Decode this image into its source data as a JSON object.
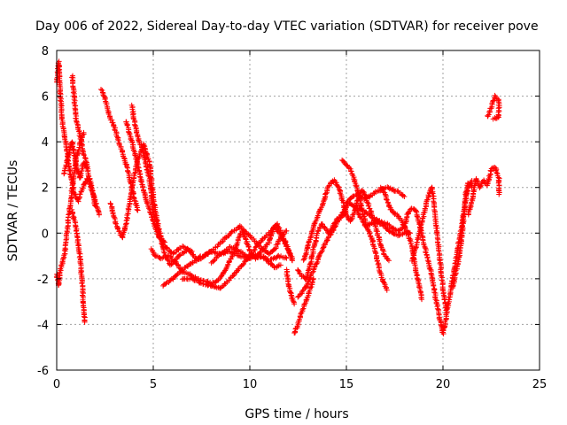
{
  "chart_data": {
    "type": "scatter",
    "title": "Day 006 of 2022, Sidereal Day-to-day VTEC variation (SDTVAR) for receiver pove",
    "xlabel": "GPS time / hours",
    "ylabel": "SDTVAR / TECUs",
    "xlim": [
      0,
      25
    ],
    "ylim": [
      -6,
      8
    ],
    "xticks": [
      0,
      5,
      10,
      15,
      20,
      25
    ],
    "yticks": [
      -6,
      -4,
      -2,
      0,
      2,
      4,
      6,
      8
    ],
    "grid": true,
    "marker": "+",
    "series_color": "#ff0000",
    "tracks": [
      [
        [
          0.0,
          6.6
        ],
        [
          0.1,
          7.5
        ],
        [
          0.2,
          6.0
        ],
        [
          0.3,
          4.8
        ],
        [
          0.5,
          3.8
        ],
        [
          0.7,
          2.6
        ],
        [
          0.9,
          1.8
        ],
        [
          1.1,
          1.4
        ],
        [
          1.3,
          1.9
        ],
        [
          1.6,
          2.4
        ],
        [
          1.9,
          1.7
        ],
        [
          2.2,
          0.8
        ]
      ],
      [
        [
          0.0,
          -1.8
        ],
        [
          0.1,
          -2.3
        ],
        [
          0.2,
          -1.6
        ],
        [
          0.4,
          -1.0
        ],
        [
          0.6,
          0.6
        ],
        [
          0.8,
          1.9
        ],
        [
          1.0,
          3.2
        ],
        [
          1.2,
          3.9
        ],
        [
          1.4,
          4.4
        ]
      ],
      [
        [
          0.8,
          1.0
        ],
        [
          1.0,
          0.2
        ],
        [
          1.2,
          -1.0
        ],
        [
          1.35,
          -2.6
        ],
        [
          1.45,
          -3.9
        ]
      ],
      [
        [
          0.4,
          2.6
        ],
        [
          0.6,
          3.4
        ],
        [
          0.8,
          4.0
        ],
        [
          1.0,
          3.0
        ],
        [
          1.2,
          2.4
        ],
        [
          1.4,
          3.1
        ],
        [
          1.6,
          2.8
        ],
        [
          1.8,
          2.0
        ],
        [
          2.0,
          1.2
        ]
      ],
      [
        [
          0.8,
          6.9
        ],
        [
          0.9,
          6.1
        ],
        [
          1.0,
          5.0
        ],
        [
          1.2,
          4.3
        ],
        [
          1.4,
          3.5
        ],
        [
          1.6,
          2.9
        ]
      ],
      [
        [
          2.3,
          6.3
        ],
        [
          2.5,
          5.9
        ],
        [
          2.7,
          5.2
        ],
        [
          3.0,
          4.6
        ],
        [
          3.3,
          3.8
        ],
        [
          3.6,
          3.0
        ],
        [
          3.8,
          2.3
        ],
        [
          4.0,
          1.6
        ],
        [
          4.2,
          1.0
        ]
      ],
      [
        [
          2.8,
          1.3
        ],
        [
          3.0,
          0.6
        ],
        [
          3.2,
          0.1
        ],
        [
          3.4,
          -0.2
        ],
        [
          3.6,
          0.4
        ],
        [
          3.8,
          1.5
        ],
        [
          4.0,
          2.5
        ],
        [
          4.2,
          3.2
        ],
        [
          4.5,
          3.9
        ],
        [
          4.8,
          3.1
        ],
        [
          5.0,
          1.6
        ],
        [
          5.2,
          0.5
        ],
        [
          5.5,
          -0.5
        ],
        [
          6.0,
          -0.9
        ],
        [
          6.5,
          -0.6
        ],
        [
          7.0,
          -0.8
        ]
      ],
      [
        [
          3.6,
          4.9
        ],
        [
          3.8,
          4.3
        ],
        [
          4.0,
          3.6
        ],
        [
          4.2,
          3.0
        ],
        [
          4.4,
          2.2
        ],
        [
          4.7,
          1.3
        ],
        [
          5.0,
          0.5
        ],
        [
          5.3,
          -0.2
        ],
        [
          5.6,
          -0.4
        ]
      ],
      [
        [
          3.9,
          5.6
        ],
        [
          4.0,
          5.0
        ],
        [
          4.2,
          4.2
        ],
        [
          4.5,
          3.5
        ],
        [
          4.8,
          2.4
        ],
        [
          5.0,
          0.9
        ],
        [
          5.3,
          0.0
        ],
        [
          5.6,
          -0.9
        ],
        [
          5.9,
          -1.4
        ],
        [
          6.3,
          -1.0
        ],
        [
          6.8,
          -0.7
        ],
        [
          7.2,
          -1.1
        ],
        [
          7.6,
          -1.0
        ],
        [
          8.0,
          -0.8
        ],
        [
          8.5,
          -0.9
        ],
        [
          9.0,
          -0.8
        ],
        [
          9.5,
          -1.0
        ],
        [
          10.0,
          -1.1
        ],
        [
          10.5,
          -1.0
        ],
        [
          11.0,
          -1.2
        ],
        [
          11.5,
          -1.0
        ],
        [
          11.9,
          -1.1
        ]
      ],
      [
        [
          4.9,
          -0.7
        ],
        [
          5.1,
          -1.0
        ],
        [
          5.4,
          -1.1
        ],
        [
          5.8,
          -1.0
        ],
        [
          6.2,
          -1.3
        ],
        [
          6.5,
          -1.7
        ],
        [
          6.9,
          -1.8
        ],
        [
          7.3,
          -2.0
        ],
        [
          7.7,
          -2.1
        ],
        [
          8.0,
          -2.2
        ],
        [
          8.3,
          -2.1
        ],
        [
          8.6,
          -1.8
        ],
        [
          8.9,
          -1.3
        ],
        [
          9.2,
          -0.8
        ],
        [
          9.4,
          -0.3
        ],
        [
          9.6,
          0.1
        ],
        [
          9.8,
          -0.3
        ],
        [
          10.0,
          -0.8
        ],
        [
          10.3,
          -1.1
        ],
        [
          10.7,
          -1.0
        ],
        [
          11.0,
          -1.3
        ],
        [
          11.3,
          -1.5
        ],
        [
          11.6,
          -1.4
        ]
      ],
      [
        [
          5.5,
          -2.3
        ],
        [
          6.0,
          -2.0
        ],
        [
          6.5,
          -1.6
        ],
        [
          7.0,
          -1.3
        ],
        [
          7.5,
          -1.1
        ],
        [
          8.0,
          -0.8
        ],
        [
          8.5,
          -0.4
        ],
        [
          9.0,
          0.0
        ],
        [
          9.5,
          0.3
        ],
        [
          10.0,
          -0.1
        ],
        [
          10.5,
          -0.6
        ],
        [
          11.0,
          -0.9
        ],
        [
          11.3,
          -0.7
        ],
        [
          11.6,
          -0.2
        ],
        [
          11.9,
          0.1
        ]
      ],
      [
        [
          6.5,
          -2.0
        ],
        [
          7.0,
          -2.0
        ],
        [
          7.5,
          -2.2
        ],
        [
          8.0,
          -2.3
        ],
        [
          8.5,
          -2.4
        ],
        [
          9.0,
          -2.0
        ],
        [
          9.5,
          -1.5
        ],
        [
          10.0,
          -1.0
        ],
        [
          10.5,
          -0.4
        ],
        [
          11.0,
          0.0
        ],
        [
          11.3,
          0.3
        ],
        [
          11.6,
          -0.1
        ],
        [
          11.9,
          -0.6
        ],
        [
          12.2,
          -1.1
        ]
      ],
      [
        [
          8.0,
          -1.3
        ],
        [
          8.5,
          -0.9
        ],
        [
          9.0,
          -0.6
        ],
        [
          9.5,
          -0.8
        ],
        [
          10.0,
          -1.1
        ],
        [
          10.5,
          -0.9
        ],
        [
          11.0,
          -0.4
        ],
        [
          11.2,
          0.2
        ],
        [
          11.4,
          0.4
        ],
        [
          11.7,
          -0.1
        ],
        [
          12.0,
          -0.7
        ],
        [
          12.2,
          -1.2
        ]
      ],
      [
        [
          11.9,
          -1.6
        ],
        [
          12.0,
          -2.2
        ],
        [
          12.1,
          -2.6
        ],
        [
          12.2,
          -2.9
        ],
        [
          12.3,
          -3.1
        ]
      ],
      [
        [
          12.3,
          -4.4
        ],
        [
          12.5,
          -4.0
        ],
        [
          12.7,
          -3.4
        ],
        [
          12.9,
          -3.0
        ],
        [
          13.1,
          -2.5
        ],
        [
          13.3,
          -2.0
        ]
      ],
      [
        [
          12.5,
          -1.6
        ],
        [
          12.7,
          -1.9
        ],
        [
          12.9,
          -2.0
        ],
        [
          13.1,
          -1.5
        ],
        [
          13.3,
          -0.7
        ],
        [
          13.5,
          0.0
        ],
        [
          13.7,
          0.4
        ],
        [
          13.9,
          0.2
        ],
        [
          14.1,
          0.0
        ],
        [
          14.3,
          0.3
        ],
        [
          14.5,
          0.6
        ],
        [
          14.7,
          0.7
        ],
        [
          14.9,
          0.8
        ],
        [
          15.0,
          1.3
        ],
        [
          15.2,
          1.3
        ],
        [
          15.5,
          1.1
        ],
        [
          15.8,
          0.6
        ],
        [
          16.0,
          0.3
        ],
        [
          16.2,
          0.4
        ],
        [
          16.5,
          0.5
        ],
        [
          16.8,
          0.4
        ],
        [
          17.1,
          0.2
        ],
        [
          17.4,
          0.0
        ],
        [
          17.7,
          -0.1
        ],
        [
          18.0,
          0.0
        ],
        [
          18.3,
          0.0
        ]
      ],
      [
        [
          12.8,
          -1.2
        ],
        [
          13.0,
          -0.6
        ],
        [
          13.2,
          0.0
        ],
        [
          13.4,
          0.5
        ],
        [
          13.6,
          0.9
        ],
        [
          13.8,
          1.3
        ],
        [
          14.0,
          1.9
        ],
        [
          14.2,
          2.2
        ],
        [
          14.4,
          2.3
        ],
        [
          14.6,
          2.0
        ],
        [
          14.8,
          1.4
        ],
        [
          15.0,
          0.8
        ],
        [
          15.2,
          0.5
        ],
        [
          15.4,
          0.9
        ],
        [
          15.6,
          1.5
        ],
        [
          15.8,
          1.9
        ],
        [
          16.0,
          1.6
        ],
        [
          16.2,
          1.1
        ],
        [
          16.4,
          0.6
        ],
        [
          16.6,
          0.0
        ],
        [
          16.8,
          -0.6
        ],
        [
          17.0,
          -1.0
        ],
        [
          17.2,
          -1.2
        ]
      ],
      [
        [
          12.5,
          -2.8
        ],
        [
          12.8,
          -2.5
        ],
        [
          13.1,
          -2.0
        ],
        [
          13.4,
          -1.4
        ],
        [
          13.7,
          -0.8
        ],
        [
          14.0,
          -0.3
        ],
        [
          14.3,
          0.1
        ],
        [
          14.6,
          0.6
        ],
        [
          14.9,
          1.0
        ],
        [
          15.1,
          1.4
        ],
        [
          15.3,
          1.6
        ],
        [
          15.6,
          1.7
        ],
        [
          15.9,
          1.5
        ],
        [
          16.2,
          1.6
        ],
        [
          16.5,
          1.8
        ],
        [
          16.8,
          1.9
        ],
        [
          17.1,
          2.0
        ],
        [
          17.4,
          1.9
        ],
        [
          17.7,
          1.8
        ],
        [
          18.0,
          1.6
        ]
      ],
      [
        [
          14.8,
          3.2
        ],
        [
          15.0,
          3.0
        ],
        [
          15.2,
          2.8
        ],
        [
          15.4,
          2.4
        ],
        [
          15.6,
          1.8
        ],
        [
          15.8,
          1.1
        ],
        [
          16.0,
          0.4
        ],
        [
          16.3,
          -0.2
        ],
        [
          16.5,
          -0.8
        ],
        [
          16.7,
          -1.6
        ],
        [
          16.9,
          -2.1
        ],
        [
          17.1,
          -2.5
        ]
      ],
      [
        [
          16.8,
          2.0
        ],
        [
          17.0,
          1.7
        ],
        [
          17.2,
          1.2
        ],
        [
          17.4,
          0.9
        ],
        [
          17.6,
          0.8
        ],
        [
          17.8,
          0.6
        ],
        [
          18.0,
          0.3
        ],
        [
          18.2,
          0.0
        ],
        [
          18.4,
          -0.6
        ],
        [
          18.6,
          -1.6
        ],
        [
          18.8,
          -2.4
        ],
        [
          18.9,
          -2.9
        ]
      ],
      [
        [
          15.5,
          1.2
        ],
        [
          15.8,
          1.0
        ],
        [
          16.2,
          0.8
        ],
        [
          16.5,
          0.6
        ],
        [
          16.8,
          0.5
        ],
        [
          17.1,
          0.4
        ],
        [
          17.4,
          0.2
        ],
        [
          17.7,
          0.1
        ],
        [
          18.0,
          0.3
        ],
        [
          18.2,
          0.9
        ],
        [
          18.4,
          1.1
        ],
        [
          18.6,
          1.0
        ],
        [
          18.8,
          0.3
        ],
        [
          19.0,
          -0.4
        ],
        [
          19.2,
          -1.1
        ],
        [
          19.4,
          -1.8
        ],
        [
          19.6,
          -2.7
        ],
        [
          19.8,
          -3.6
        ],
        [
          20.0,
          -4.4
        ],
        [
          20.1,
          -4.0
        ],
        [
          20.3,
          -3.0
        ],
        [
          20.5,
          -2.0
        ],
        [
          20.7,
          -1.0
        ],
        [
          20.9,
          0.0
        ],
        [
          21.1,
          1.0
        ],
        [
          21.3,
          2.0
        ],
        [
          21.5,
          2.3
        ]
      ],
      [
        [
          18.4,
          -1.2
        ],
        [
          18.6,
          -0.6
        ],
        [
          18.8,
          0.1
        ],
        [
          19.0,
          0.8
        ],
        [
          19.2,
          1.5
        ],
        [
          19.4,
          2.0
        ],
        [
          19.5,
          1.6
        ],
        [
          19.6,
          0.8
        ],
        [
          19.7,
          0.0
        ],
        [
          19.8,
          -0.8
        ],
        [
          19.9,
          -1.6
        ],
        [
          20.0,
          -2.4
        ],
        [
          20.1,
          -3.0
        ],
        [
          20.2,
          -3.5
        ]
      ],
      [
        [
          20.5,
          -2.4
        ],
        [
          20.7,
          -1.6
        ],
        [
          20.9,
          -0.8
        ],
        [
          21.0,
          0.1
        ],
        [
          21.1,
          1.0
        ],
        [
          21.2,
          1.8
        ],
        [
          21.3,
          2.2
        ],
        [
          21.5,
          2.0
        ]
      ],
      [
        [
          21.3,
          0.8
        ],
        [
          21.5,
          1.4
        ],
        [
          21.7,
          2.4
        ],
        [
          21.9,
          2.0
        ],
        [
          22.1,
          2.3
        ],
        [
          22.3,
          2.1
        ],
        [
          22.5,
          2.8
        ],
        [
          22.7,
          2.9
        ],
        [
          22.9,
          2.4
        ],
        [
          22.9,
          1.7
        ]
      ],
      [
        [
          22.3,
          5.1
        ],
        [
          22.5,
          5.5
        ],
        [
          22.7,
          6.0
        ],
        [
          22.9,
          5.8
        ],
        [
          22.9,
          5.1
        ],
        [
          22.6,
          5.0
        ]
      ]
    ]
  }
}
